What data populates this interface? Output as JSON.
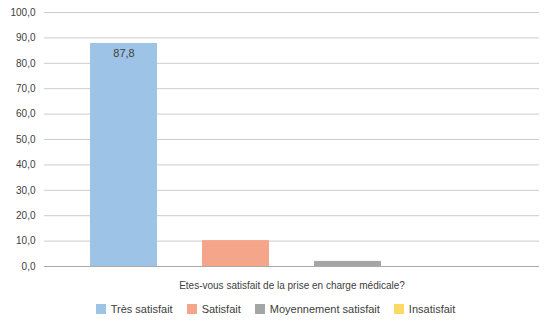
{
  "chart_data": {
    "type": "bar",
    "categories": [
      "Très satisfait",
      "Satisfait",
      "Moyennement satisfait",
      "Insatisfait"
    ],
    "values": [
      87.8,
      10.2,
      2.0,
      0.0
    ],
    "colors": [
      "#9DC3E6",
      "#F4A58A",
      "#A5A5A5",
      "#FFD966"
    ],
    "xlabel": "Etes-vous satisfait de la prise en charge médicale?",
    "ylim": [
      0,
      100
    ],
    "yticks": [
      {
        "value": 0,
        "label": "0,0"
      },
      {
        "value": 10,
        "label": "10,0"
      },
      {
        "value": 20,
        "label": "20,0"
      },
      {
        "value": 30,
        "label": "30,0"
      },
      {
        "value": 40,
        "label": "40,0"
      },
      {
        "value": 50,
        "label": "50,0"
      },
      {
        "value": 60,
        "label": "60,0"
      },
      {
        "value": 70,
        "label": "70,0"
      },
      {
        "value": 80,
        "label": "80,0"
      },
      {
        "value": 90,
        "label": "90,0"
      },
      {
        "value": 100,
        "label": "100,0"
      }
    ],
    "grid": true,
    "tick_labels": "y",
    "legend": "bottom",
    "annotations": [
      {
        "category": "Très satisfait",
        "value": 87.8,
        "text": "87,8"
      }
    ]
  }
}
